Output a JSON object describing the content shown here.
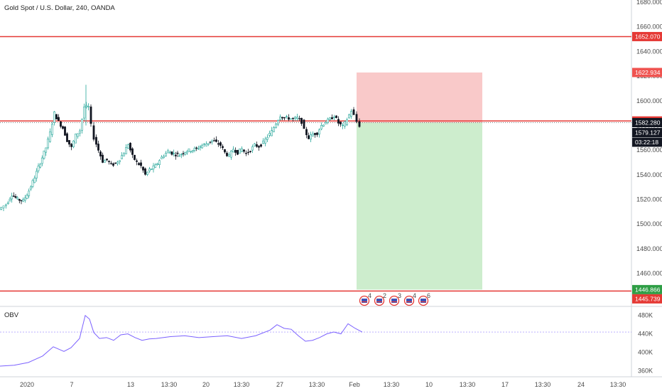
{
  "symbol_title": "Gold Spot / U.S. Dollar, 240, OANDA",
  "chart_data": [
    {
      "type": "candlestick",
      "title": "Gold Spot / U.S. Dollar, 240, OANDA",
      "ylim": [
        1440,
        1690
      ],
      "y_ticks": [
        "1460.000",
        "1480.000",
        "1500.000",
        "1520.000",
        "1540.000",
        "1560.000",
        "1580.000",
        "1600.000",
        "1620.000",
        "1640.000",
        "1660.000",
        "1680.000"
      ],
      "x_ticks": [
        "2020",
        "7",
        "13",
        "13:30",
        "20",
        "13:30",
        "27",
        "13:30",
        "Feb",
        "13:30",
        "10",
        "13:30",
        "17",
        "13:30",
        "24",
        "13:30"
      ],
      "horizontal_lines": [
        {
          "value": 1652.07,
          "label": "1652.070",
          "color": "#e53935"
        },
        {
          "value": 1583.621,
          "label": "1583.621",
          "color": "#e53935"
        },
        {
          "value": 1445.739,
          "label": "1445.739",
          "color": "#e53935"
        }
      ],
      "price_labels": [
        {
          "value": 1622.934,
          "label": "1622.934",
          "color": "#ef5350"
        },
        {
          "value": 1582.28,
          "label": "1582.280",
          "color": "#131722"
        },
        {
          "value": 1579.127,
          "label": "1579.127",
          "color": "#131722"
        },
        {
          "value": 1446.866,
          "label": "1446.866",
          "color": "#2e9e45"
        }
      ],
      "countdown": "03:22:18",
      "last_price_line": 1582.28,
      "position": {
        "entry": 1582.28,
        "stop": 1622.934,
        "target": 1446.866
      },
      "close_path": [
        [
          0,
          1512
        ],
        [
          10,
          1516
        ],
        [
          18,
          1524
        ],
        [
          26,
          1520
        ],
        [
          34,
          1519
        ],
        [
          42,
          1527
        ],
        [
          50,
          1538
        ],
        [
          58,
          1550
        ],
        [
          66,
          1562
        ],
        [
          72,
          1574
        ],
        [
          78,
          1590
        ],
        [
          84,
          1583
        ],
        [
          90,
          1578
        ],
        [
          96,
          1568
        ],
        [
          102,
          1562
        ],
        [
          108,
          1572
        ],
        [
          114,
          1576
        ],
        [
          120,
          1595
        ],
        [
          126,
          1595
        ],
        [
          130,
          1580
        ],
        [
          134,
          1570
        ],
        [
          140,
          1560
        ],
        [
          146,
          1551
        ],
        [
          152,
          1552
        ],
        [
          158,
          1548
        ],
        [
          164,
          1549
        ],
        [
          170,
          1553
        ],
        [
          176,
          1558
        ],
        [
          182,
          1565
        ],
        [
          188,
          1555
        ],
        [
          194,
          1550
        ],
        [
          200,
          1547
        ],
        [
          206,
          1540
        ],
        [
          212,
          1544
        ],
        [
          220,
          1547
        ],
        [
          226,
          1552
        ],
        [
          232,
          1556
        ],
        [
          238,
          1559
        ],
        [
          246,
          1557
        ],
        [
          254,
          1556
        ],
        [
          262,
          1559
        ],
        [
          270,
          1560
        ],
        [
          278,
          1561
        ],
        [
          286,
          1564
        ],
        [
          292,
          1565
        ],
        [
          300,
          1568
        ],
        [
          306,
          1566
        ],
        [
          312,
          1564
        ],
        [
          318,
          1558
        ],
        [
          324,
          1555
        ],
        [
          330,
          1561
        ],
        [
          336,
          1558
        ],
        [
          342,
          1561
        ],
        [
          348,
          1557
        ],
        [
          354,
          1560
        ],
        [
          360,
          1564
        ],
        [
          366,
          1563
        ],
        [
          372,
          1566
        ],
        [
          378,
          1571
        ],
        [
          384,
          1575
        ],
        [
          390,
          1582
        ],
        [
          396,
          1588
        ],
        [
          402,
          1586
        ],
        [
          408,
          1586
        ],
        [
          414,
          1585
        ],
        [
          420,
          1586
        ],
        [
          426,
          1583
        ],
        [
          430,
          1576
        ],
        [
          436,
          1570
        ],
        [
          442,
          1573
        ],
        [
          448,
          1574
        ],
        [
          454,
          1580
        ],
        [
          460,
          1583
        ],
        [
          466,
          1585
        ],
        [
          472,
          1588
        ],
        [
          478,
          1582
        ],
        [
          484,
          1579
        ],
        [
          490,
          1585
        ],
        [
          496,
          1592
        ],
        [
          500,
          1588
        ],
        [
          504,
          1583
        ],
        [
          508,
          1580
        ]
      ],
      "series": [
        {
          "name": "OBV",
          "y_ticks": [
            "360K",
            "400K",
            "440K",
            "480K"
          ],
          "ylim": [
            350,
            495
          ],
          "ref_line": 444,
          "color": "#7b61ff",
          "points": [
            [
              0,
              370
            ],
            [
              20,
              372
            ],
            [
              40,
              378
            ],
            [
              60,
              392
            ],
            [
              75,
              412
            ],
            [
              90,
              402
            ],
            [
              100,
              410
            ],
            [
              112,
              430
            ],
            [
              120,
              480
            ],
            [
              126,
              472
            ],
            [
              132,
              443
            ],
            [
              140,
              430
            ],
            [
              150,
              432
            ],
            [
              160,
              426
            ],
            [
              170,
              438
            ],
            [
              180,
              440
            ],
            [
              190,
              432
            ],
            [
              200,
              426
            ],
            [
              210,
              429
            ],
            [
              220,
              430
            ],
            [
              240,
              434
            ],
            [
              260,
              436
            ],
            [
              280,
              432
            ],
            [
              300,
              434
            ],
            [
              320,
              436
            ],
            [
              340,
              430
            ],
            [
              360,
              436
            ],
            [
              380,
              448
            ],
            [
              390,
              460
            ],
            [
              400,
              452
            ],
            [
              410,
              450
            ],
            [
              420,
              436
            ],
            [
              430,
              424
            ],
            [
              440,
              426
            ],
            [
              450,
              432
            ],
            [
              460,
              440
            ],
            [
              470,
              444
            ],
            [
              480,
              440
            ],
            [
              490,
              462
            ],
            [
              500,
              452
            ],
            [
              510,
              444
            ]
          ]
        }
      ]
    }
  ],
  "indicator": {
    "label": "OBV"
  },
  "x_labels": [
    "2020",
    "7",
    "13",
    "13:30",
    "20",
    "13:30",
    "27",
    "13:30",
    "Feb",
    "13:30",
    "10",
    "13:30",
    "17",
    "13:30",
    "24",
    "13:30"
  ],
  "event_markers": [
    {
      "count": "4"
    },
    {
      "count": "2"
    },
    {
      "count": "3"
    },
    {
      "count": "4"
    },
    {
      "count": "6"
    }
  ],
  "colors": {
    "up": "#ffffff",
    "down": "#131722",
    "up_edge": "#26a69a",
    "down_edge": "#131722",
    "stop_zone": "#f7b7b7",
    "target_zone": "#c8ebc8",
    "obv_line": "#7b61ff"
  }
}
